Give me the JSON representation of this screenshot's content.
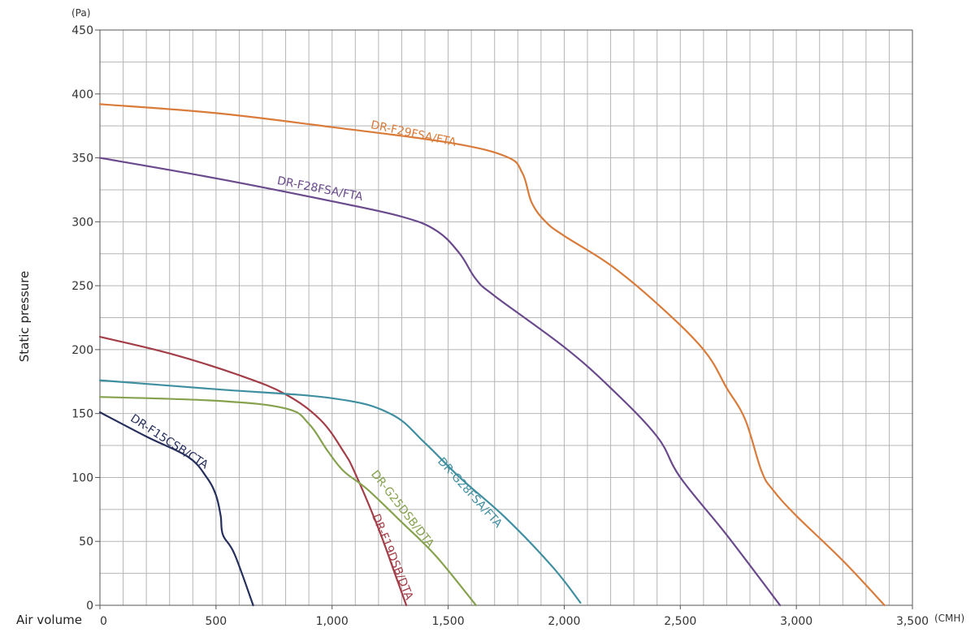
{
  "chart_data": {
    "type": "line",
    "title": "",
    "xlabel": "Air volume",
    "ylabel": "Static pressure",
    "x_unit": "(CMH)",
    "y_unit": "(Pa)",
    "xlim": [
      0,
      3500
    ],
    "ylim": [
      0,
      450
    ],
    "x_ticks": [
      0,
      500,
      1000,
      1500,
      2000,
      2500,
      3000,
      3500
    ],
    "x_tick_labels": [
      "0",
      "500",
      "1,000",
      "1,500",
      "2,000",
      "2,500",
      "3,000",
      "3,500"
    ],
    "y_ticks": [
      0,
      50,
      100,
      150,
      200,
      250,
      300,
      350,
      400,
      450
    ],
    "y_tick_labels": [
      "0",
      "50",
      "100",
      "150",
      "200",
      "250",
      "300",
      "350",
      "400",
      "450"
    ],
    "grid": true,
    "series": [
      {
        "name": "DR-F29FSA/FTA",
        "color": "#d97b3a",
        "points": [
          [
            0,
            392
          ],
          [
            500,
            385
          ],
          [
            1000,
            374
          ],
          [
            1500,
            362
          ],
          [
            1750,
            351
          ],
          [
            1820,
            338
          ],
          [
            1860,
            315
          ],
          [
            1920,
            300
          ],
          [
            2000,
            289
          ],
          [
            2200,
            266
          ],
          [
            2400,
            236
          ],
          [
            2600,
            200
          ],
          [
            2700,
            170
          ],
          [
            2780,
            145
          ],
          [
            2850,
            105
          ],
          [
            2900,
            90
          ],
          [
            3000,
            70
          ],
          [
            3200,
            35
          ],
          [
            3380,
            0
          ]
        ]
      },
      {
        "name": "DR-F28FSA/FTA",
        "color": "#6a4a8c",
        "points": [
          [
            0,
            350
          ],
          [
            500,
            334
          ],
          [
            1000,
            316
          ],
          [
            1300,
            304
          ],
          [
            1450,
            293
          ],
          [
            1550,
            275
          ],
          [
            1620,
            255
          ],
          [
            1700,
            242
          ],
          [
            2000,
            202
          ],
          [
            2200,
            170
          ],
          [
            2400,
            132
          ],
          [
            2500,
            100
          ],
          [
            2700,
            55
          ],
          [
            2930,
            0
          ]
        ]
      },
      {
        "name": "DR-F19DSB/DTA",
        "color": "#a33e48",
        "points": [
          [
            0,
            210
          ],
          [
            300,
            197
          ],
          [
            600,
            180
          ],
          [
            800,
            165
          ],
          [
            950,
            145
          ],
          [
            1050,
            120
          ],
          [
            1100,
            103
          ],
          [
            1200,
            60
          ],
          [
            1270,
            25
          ],
          [
            1320,
            0
          ]
        ]
      },
      {
        "name": "DR-G28FSA/FTA",
        "color": "#3f8fa0",
        "points": [
          [
            0,
            176
          ],
          [
            500,
            169
          ],
          [
            1000,
            162
          ],
          [
            1250,
            150
          ],
          [
            1400,
            127
          ],
          [
            1550,
            100
          ],
          [
            1750,
            68
          ],
          [
            1950,
            30
          ],
          [
            2070,
            2
          ]
        ]
      },
      {
        "name": "DR-G25DSB/DTA",
        "color": "#86a24e",
        "points": [
          [
            0,
            163
          ],
          [
            500,
            160
          ],
          [
            800,
            154
          ],
          [
            900,
            142
          ],
          [
            980,
            121
          ],
          [
            1050,
            105
          ],
          [
            1150,
            91
          ],
          [
            1300,
            65
          ],
          [
            1450,
            38
          ],
          [
            1620,
            0
          ]
        ]
      },
      {
        "name": "DR-F15CSB/CTA",
        "color": "#262e5c",
        "points": [
          [
            0,
            151
          ],
          [
            200,
            132
          ],
          [
            380,
            116
          ],
          [
            460,
            100
          ],
          [
            500,
            86
          ],
          [
            520,
            70
          ],
          [
            530,
            55
          ],
          [
            580,
            40
          ],
          [
            660,
            0
          ]
        ]
      }
    ],
    "annotations": [
      {
        "text": "DR-F29FSA/FTA",
        "series": 0
      },
      {
        "text": "DR-F28FSA/FTA",
        "series": 1
      },
      {
        "text": "DR-F19DSB/DTA",
        "series": 2
      },
      {
        "text": "DR-G28FSA/FTA",
        "series": 3
      },
      {
        "text": "DR-G25DSB/DTA",
        "series": 4
      },
      {
        "text": "DR-F15CSB/CTA",
        "series": 5
      }
    ]
  }
}
